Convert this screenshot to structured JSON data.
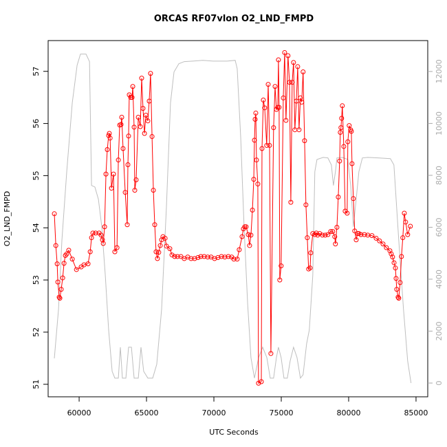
{
  "chart_data": {
    "type": "line",
    "title": "ORCAS RF07vlon O2_LND_FMPD",
    "x_label": "UTC Seconds",
    "y_label": "O2_LND_FMPD",
    "xlim": [
      57700,
      85870
    ],
    "ylim": [
      50.76,
      57.59
    ],
    "y2lim": [
      -530,
      13190
    ],
    "xticks": [
      60000,
      65000,
      70000,
      75000,
      80000,
      85000
    ],
    "yticks": [
      51,
      52,
      53,
      54,
      55,
      56,
      57
    ],
    "y2ticks": [
      0,
      2000,
      4000,
      6000,
      8000,
      10000,
      12000
    ],
    "series": [
      {
        "color": "#bebebe",
        "axis": "y2",
        "markers": false,
        "x": [
          58160,
          58470,
          58720,
          59080,
          59490,
          59850,
          60100,
          60510,
          60770,
          60920,
          61170,
          61430,
          61680,
          61940,
          62190,
          62450,
          62650,
          62910,
          63060,
          63210,
          63470,
          63670,
          63880,
          64080,
          64390,
          64590,
          64790,
          65100,
          65460,
          65760,
          66120,
          66480,
          66780,
          67040,
          67400,
          67800,
          68420,
          69180,
          69950,
          70460,
          70970,
          71580,
          71730,
          71990,
          72240,
          72500,
          72750,
          73010,
          73320,
          73620,
          73930,
          74180,
          74430,
          74640,
          74790,
          74990,
          75200,
          75450,
          75660,
          75910,
          76170,
          76420,
          76620,
          76880,
          77080,
          77340,
          77490,
          77650,
          78110,
          78460,
          78720,
          78870,
          79020,
          79130,
          79530,
          79940,
          80150,
          80350,
          80560,
          80760,
          81020,
          81420,
          82190,
          83100,
          83360,
          83720,
          84070,
          84380,
          84630
        ],
        "values": [
          950,
          2840,
          5490,
          8140,
          10790,
          12240,
          12670,
          12670,
          12380,
          7610,
          7550,
          7080,
          6020,
          4160,
          2040,
          450,
          190,
          190,
          1380,
          190,
          190,
          1380,
          1380,
          190,
          190,
          1380,
          450,
          190,
          190,
          720,
          2840,
          6810,
          10790,
          11980,
          12300,
          12380,
          12400,
          12430,
          12400,
          12400,
          12400,
          12430,
          12110,
          9460,
          6020,
          3100,
          980,
          190,
          980,
          1380,
          980,
          190,
          190,
          980,
          1380,
          980,
          190,
          190,
          850,
          1380,
          980,
          190,
          320,
          1510,
          2040,
          4160,
          8140,
          8610,
          8690,
          8670,
          8400,
          7610,
          8140,
          8670,
          8690,
          8610,
          7610,
          6020,
          7080,
          8140,
          8670,
          8690,
          8670,
          8640,
          8400,
          5490,
          2840,
          850,
          0
        ]
      },
      {
        "color": "#ff0000",
        "markers": true,
        "x": [
          58160,
          58270,
          58370,
          58420,
          58520,
          58570,
          58670,
          58780,
          58880,
          58980,
          59080,
          59230,
          59490,
          59800,
          60150,
          60360,
          60660,
          60820,
          60920,
          61020,
          61220,
          61480,
          61630,
          61730,
          61790,
          61890,
          61990,
          62090,
          62190,
          62240,
          62300,
          62400,
          62550,
          62650,
          62810,
          62910,
          63010,
          63110,
          63160,
          63260,
          63420,
          63570,
          63620,
          63670,
          63720,
          63830,
          63930,
          63980,
          64080,
          64130,
          64230,
          64390,
          64540,
          64640,
          64740,
          64850,
          64950,
          65100,
          65200,
          65300,
          65410,
          65510,
          65610,
          65710,
          65810,
          65910,
          66020,
          66120,
          66220,
          66380,
          66480,
          66730,
          66890,
          67090,
          67290,
          67550,
          67800,
          68060,
          68310,
          68570,
          68820,
          69030,
          69280,
          69540,
          69790,
          70050,
          70300,
          70560,
          70810,
          71070,
          71320,
          71480,
          71730,
          71880,
          72090,
          72190,
          72290,
          72390,
          72550,
          72650,
          72750,
          72860,
          72960,
          73010,
          73060,
          73110,
          73160,
          73260,
          73310,
          73520,
          73570,
          73670,
          73770,
          73920,
          74030,
          74130,
          74230,
          74430,
          74540,
          74640,
          74740,
          74790,
          74840,
          74890,
          74990,
          75150,
          75250,
          75350,
          75500,
          75610,
          75710,
          75810,
          75910,
          76010,
          76120,
          76220,
          76320,
          76420,
          76520,
          76620,
          76730,
          76830,
          76930,
          77030,
          77140,
          77190,
          77340,
          77490,
          77600,
          77700,
          77850,
          78050,
          78260,
          78460,
          78670,
          78820,
          78970,
          79020,
          79130,
          79230,
          79330,
          79380,
          79430,
          79480,
          79530,
          79640,
          79740,
          79890,
          79940,
          80040,
          80150,
          80200,
          80250,
          80350,
          80450,
          80560,
          80660,
          80760,
          80910,
          81170,
          81420,
          81730,
          82040,
          82290,
          82550,
          82800,
          83060,
          83160,
          83260,
          83370,
          83470,
          83520,
          83570,
          83670,
          83720,
          83820,
          83920,
          84020,
          84130,
          84230,
          84380,
          84580
        ],
        "values": [
          54.27,
          53.66,
          53.31,
          52.96,
          52.67,
          52.65,
          52.82,
          53.04,
          53.32,
          53.47,
          53.5,
          53.57,
          53.4,
          53.2,
          53.25,
          53.29,
          53.31,
          53.54,
          53.81,
          53.9,
          53.9,
          53.9,
          53.86,
          53.77,
          53.7,
          54.02,
          55.03,
          55.5,
          55.77,
          55.81,
          55.72,
          54.76,
          55.03,
          53.54,
          53.62,
          55.3,
          55.97,
          55.98,
          56.12,
          55.52,
          54.68,
          54.06,
          55.21,
          55.76,
          56.55,
          56.5,
          56.5,
          56.71,
          55.93,
          54.72,
          54.92,
          56.12,
          55.94,
          56.87,
          56.29,
          55.81,
          56.16,
          56.05,
          56.43,
          56.96,
          55.75,
          54.72,
          54.06,
          53.54,
          53.41,
          53.53,
          53.66,
          53.77,
          53.83,
          53.8,
          53.65,
          53.6,
          53.48,
          53.45,
          53.45,
          53.45,
          53.41,
          53.44,
          53.41,
          53.41,
          53.43,
          53.45,
          53.45,
          53.44,
          53.44,
          53.41,
          53.43,
          53.45,
          53.44,
          53.45,
          53.44,
          53.4,
          53.4,
          53.58,
          53.83,
          53.98,
          54.02,
          54.02,
          53.87,
          53.66,
          53.86,
          54.34,
          54.93,
          55.68,
          56.08,
          56.2,
          55.3,
          54.84,
          51.02,
          51.05,
          55.52,
          56.45,
          56.3,
          55.58,
          56.75,
          55.58,
          51.59,
          55.92,
          56.71,
          56.27,
          56.31,
          57.22,
          56.31,
          53,
          53.27,
          56.49,
          57.36,
          56.06,
          57.3,
          56.79,
          54.49,
          56.79,
          57.17,
          55.88,
          56.43,
          57.09,
          55.88,
          56.49,
          56.41,
          56.99,
          55.67,
          54.44,
          53.81,
          53.21,
          53.23,
          53.52,
          53.89,
          53.87,
          53.9,
          53.86,
          53.89,
          53.86,
          53.86,
          53.87,
          53.93,
          53.93,
          53.83,
          53.69,
          54.01,
          54.59,
          55.28,
          55.83,
          55.92,
          56.1,
          56.34,
          55.56,
          54.32,
          54.28,
          55.65,
          55.96,
          55.88,
          55.85,
          55.23,
          54.56,
          53.94,
          53.77,
          53.89,
          53.89,
          53.87,
          53.87,
          53.86,
          53.85,
          53.8,
          53.75,
          53.69,
          53.62,
          53.56,
          53.5,
          53.44,
          53.33,
          53.23,
          53.03,
          52.82,
          52.67,
          52.65,
          52.95,
          53.45,
          53.81,
          54.28,
          54.11,
          53.87,
          54.03
        ]
      }
    ]
  }
}
